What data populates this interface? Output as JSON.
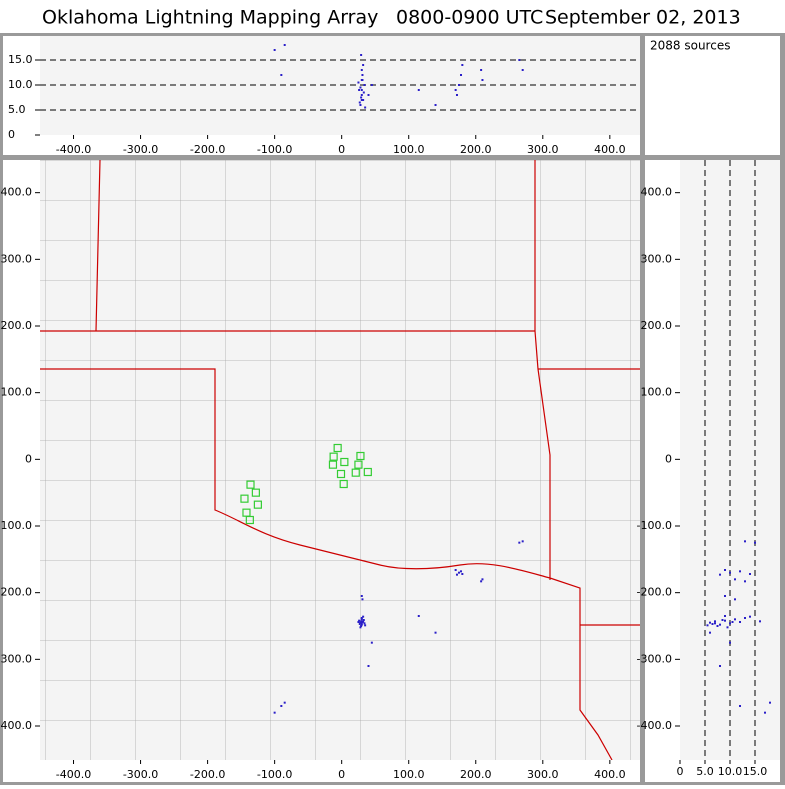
{
  "chart_data": {
    "type": "scatter",
    "title": "Oklahoma Lightning Mapping Array",
    "time_range": "0800-0900 UTC",
    "date": "September 02, 2013",
    "annotation": "2088 sources",
    "color": "#2a1fc8",
    "x": [
      28,
      32,
      30,
      26,
      34,
      30,
      29,
      31,
      27,
      33,
      30,
      28,
      35,
      25,
      32,
      30,
      29,
      30,
      31,
      175,
      178,
      172,
      180,
      170,
      210,
      208,
      265,
      270,
      45,
      40,
      -85,
      -90,
      115,
      140,
      -100
    ],
    "y": [
      -245,
      -243,
      -248,
      -242,
      -246,
      -240,
      -250,
      -244,
      -247,
      -241,
      -238,
      -252,
      -249,
      -244,
      -236,
      -246,
      -243,
      -205,
      -210,
      -170,
      -168,
      -173,
      -172,
      -166,
      -180,
      -183,
      -125,
      -123,
      -275,
      -310,
      -365,
      -370,
      -235,
      -260,
      -380
    ],
    "alt": [
      6,
      7,
      8,
      9,
      10,
      11,
      7.5,
      12,
      6.5,
      8.5,
      13,
      9.5,
      5.5,
      10.5,
      14,
      7,
      16,
      9,
      11,
      10,
      12,
      8,
      14,
      9,
      11,
      13,
      15,
      13,
      10,
      8,
      18,
      12,
      9,
      6,
      17
    ],
    "stations": {
      "color": "#33cc33",
      "x": [
        -6,
        -12,
        4,
        28,
        -13,
        25,
        21,
        -1,
        39,
        3,
        -136,
        -128,
        -145,
        -125,
        -142,
        -137
      ],
      "y": [
        17,
        4,
        -4,
        5,
        -8,
        -8,
        -20,
        -22,
        -19,
        -37,
        -38,
        -50,
        -59,
        -68,
        -80,
        -91
      ]
    },
    "xlim": [
      -450,
      445
    ],
    "ylim": [
      -451,
      449
    ],
    "altlim": [
      0,
      20
    ],
    "xticks": [
      {
        "value": -400,
        "label": "-400.0"
      },
      {
        "value": -300,
        "label": "-300.0"
      },
      {
        "value": -200,
        "label": "-200.0"
      },
      {
        "value": -100,
        "label": "-100.0"
      },
      0,
      {
        "value": 100,
        "label": "100.0"
      },
      {
        "value": 200,
        "label": "200.0"
      },
      {
        "value": 300,
        "label": "300.0"
      },
      {
        "value": 400,
        "label": "400.0"
      }
    ],
    "yticks": [
      {
        "value": -400,
        "label": "-400.0"
      },
      {
        "value": -300,
        "label": "-300.0"
      },
      {
        "value": -200,
        "label": "-200.0"
      },
      {
        "value": -100,
        "label": "-100.0"
      },
      0,
      {
        "value": 100,
        "label": "100.0"
      },
      {
        "value": 200,
        "label": "200.0"
      },
      {
        "value": 300,
        "label": "300.0"
      },
      {
        "value": 400,
        "label": "400.0"
      }
    ],
    "altticks": [
      0,
      {
        "value": 5,
        "label": "5.0"
      },
      {
        "value": 10,
        "label": "10.0"
      },
      {
        "value": 15,
        "label": "15.0"
      }
    ],
    "grid": true
  }
}
